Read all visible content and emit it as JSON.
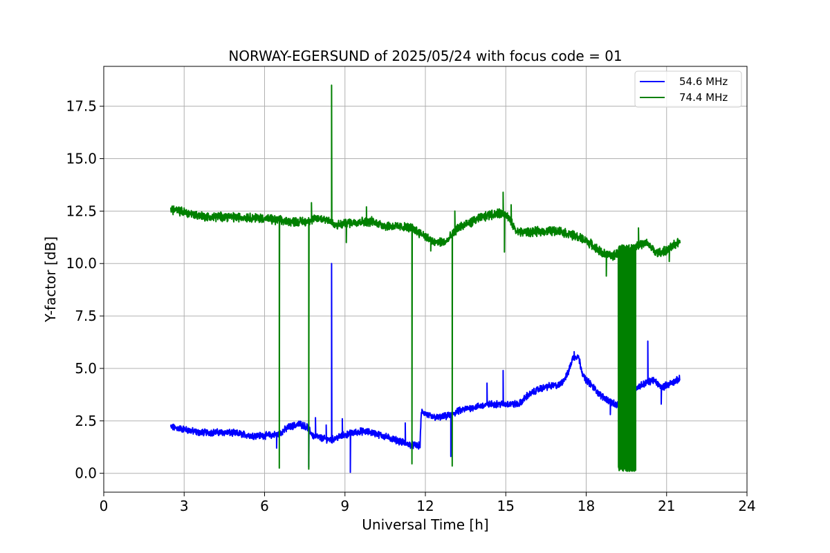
{
  "chart_data": {
    "type": "line",
    "title": "NORWAY-EGERSUND of 2025/05/24 with focus code = 01",
    "xlabel": "Universal Time [h]",
    "ylabel": "Y-factor [dB]",
    "xlim": [
      0,
      24
    ],
    "ylim": [
      -0.9,
      19.4
    ],
    "xticks": [
      0,
      3,
      6,
      9,
      12,
      15,
      18,
      21,
      24
    ],
    "yticks": [
      0.0,
      2.5,
      5.0,
      7.5,
      10.0,
      12.5,
      15.0,
      17.5
    ],
    "xtick_labels": [
      "0",
      "3",
      "6",
      "9",
      "12",
      "15",
      "18",
      "21",
      "24"
    ],
    "ytick_labels": [
      "0.0",
      "2.5",
      "5.0",
      "7.5",
      "10.0",
      "12.5",
      "15.0",
      "17.5"
    ],
    "grid": true,
    "legend_position": "top-right",
    "series": [
      {
        "name": "54.6 MHz",
        "color": "#0000ff",
        "base": [
          [
            2.5,
            2.2
          ],
          [
            3.0,
            2.1
          ],
          [
            3.5,
            1.95
          ],
          [
            4.0,
            1.95
          ],
          [
            4.5,
            1.95
          ],
          [
            5.0,
            1.9
          ],
          [
            5.5,
            1.8
          ],
          [
            6.0,
            1.8
          ],
          [
            6.5,
            1.85
          ],
          [
            6.9,
            2.2
          ],
          [
            7.3,
            2.35
          ],
          [
            7.6,
            2.2
          ],
          [
            7.8,
            1.8
          ],
          [
            8.2,
            1.65
          ],
          [
            8.5,
            1.6
          ],
          [
            8.8,
            1.75
          ],
          [
            9.2,
            1.9
          ],
          [
            9.6,
            2.0
          ],
          [
            10.0,
            1.95
          ],
          [
            10.5,
            1.75
          ],
          [
            11.0,
            1.55
          ],
          [
            11.3,
            1.4
          ],
          [
            11.8,
            1.3
          ],
          [
            11.85,
            2.95
          ],
          [
            12.2,
            2.7
          ],
          [
            12.5,
            2.65
          ],
          [
            12.9,
            2.75
          ],
          [
            13.2,
            2.95
          ],
          [
            13.6,
            3.1
          ],
          [
            14.0,
            3.2
          ],
          [
            14.5,
            3.3
          ],
          [
            15.0,
            3.3
          ],
          [
            15.5,
            3.3
          ],
          [
            15.8,
            3.7
          ],
          [
            16.2,
            4.0
          ],
          [
            16.6,
            4.15
          ],
          [
            17.0,
            4.2
          ],
          [
            17.3,
            4.7
          ],
          [
            17.5,
            5.5
          ],
          [
            17.7,
            5.6
          ],
          [
            17.9,
            4.6
          ],
          [
            18.2,
            4.2
          ],
          [
            18.5,
            3.75
          ],
          [
            18.8,
            3.5
          ],
          [
            19.1,
            3.25
          ],
          [
            19.3,
            3.3
          ],
          [
            19.6,
            3.7
          ],
          [
            19.9,
            4.1
          ],
          [
            20.2,
            4.3
          ],
          [
            20.5,
            4.45
          ],
          [
            20.8,
            4.1
          ],
          [
            21.0,
            4.2
          ],
          [
            21.5,
            4.5
          ]
        ],
        "noise": 0.13,
        "spikes": [
          [
            6.45,
            1.2
          ],
          [
            7.65,
            0.3
          ],
          [
            7.9,
            2.65
          ],
          [
            8.3,
            2.3
          ],
          [
            8.5,
            10.0
          ],
          [
            8.9,
            2.6
          ],
          [
            9.2,
            0.05
          ],
          [
            11.25,
            2.4
          ],
          [
            12.95,
            0.8
          ],
          [
            13.05,
            2.9
          ],
          [
            14.3,
            4.3
          ],
          [
            14.9,
            4.9
          ],
          [
            17.55,
            5.8
          ],
          [
            18.9,
            2.8
          ],
          [
            19.8,
            5.3
          ],
          [
            20.3,
            6.3
          ],
          [
            20.8,
            3.3
          ]
        ]
      },
      {
        "name": "74.4 MHz",
        "color": "#008000",
        "base": [
          [
            2.5,
            12.6
          ],
          [
            3.0,
            12.45
          ],
          [
            3.5,
            12.3
          ],
          [
            4.0,
            12.2
          ],
          [
            4.5,
            12.25
          ],
          [
            5.0,
            12.2
          ],
          [
            5.5,
            12.2
          ],
          [
            6.0,
            12.15
          ],
          [
            6.5,
            12.05
          ],
          [
            7.0,
            12.0
          ],
          [
            7.5,
            12.0
          ],
          [
            8.0,
            12.15
          ],
          [
            8.4,
            12.1
          ],
          [
            8.6,
            11.8
          ],
          [
            9.0,
            11.9
          ],
          [
            9.5,
            12.0
          ],
          [
            10.0,
            12.0
          ],
          [
            10.5,
            11.8
          ],
          [
            11.0,
            11.75
          ],
          [
            11.5,
            11.7
          ],
          [
            12.0,
            11.3
          ],
          [
            12.3,
            11.0
          ],
          [
            12.8,
            11.05
          ],
          [
            13.2,
            11.7
          ],
          [
            13.6,
            11.9
          ],
          [
            14.0,
            12.15
          ],
          [
            14.5,
            12.35
          ],
          [
            15.0,
            12.4
          ],
          [
            15.4,
            11.5
          ],
          [
            16.0,
            11.5
          ],
          [
            16.5,
            11.55
          ],
          [
            17.0,
            11.55
          ],
          [
            17.5,
            11.35
          ],
          [
            18.0,
            11.1
          ],
          [
            18.3,
            10.8
          ],
          [
            18.6,
            10.5
          ],
          [
            19.0,
            10.35
          ],
          [
            19.5,
            10.8
          ],
          [
            20.0,
            10.9
          ],
          [
            20.3,
            10.95
          ],
          [
            20.6,
            10.5
          ],
          [
            21.0,
            10.6
          ],
          [
            21.5,
            11.1
          ]
        ],
        "noise": 0.17,
        "spikes": [
          [
            6.55,
            0.25
          ],
          [
            7.65,
            0.2
          ],
          [
            7.75,
            12.9
          ],
          [
            8.5,
            18.5
          ],
          [
            9.05,
            11.0
          ],
          [
            9.8,
            12.7
          ],
          [
            11.5,
            0.45
          ],
          [
            12.2,
            10.6
          ],
          [
            13.0,
            0.35
          ],
          [
            13.1,
            12.5
          ],
          [
            14.9,
            13.4
          ],
          [
            14.95,
            10.55
          ],
          [
            15.2,
            12.8
          ],
          [
            18.75,
            9.4
          ],
          [
            19.95,
            11.7
          ],
          [
            21.1,
            10.1
          ]
        ],
        "dense_band": [
          19.2,
          19.85,
          0.1,
          10.9
        ]
      }
    ]
  }
}
